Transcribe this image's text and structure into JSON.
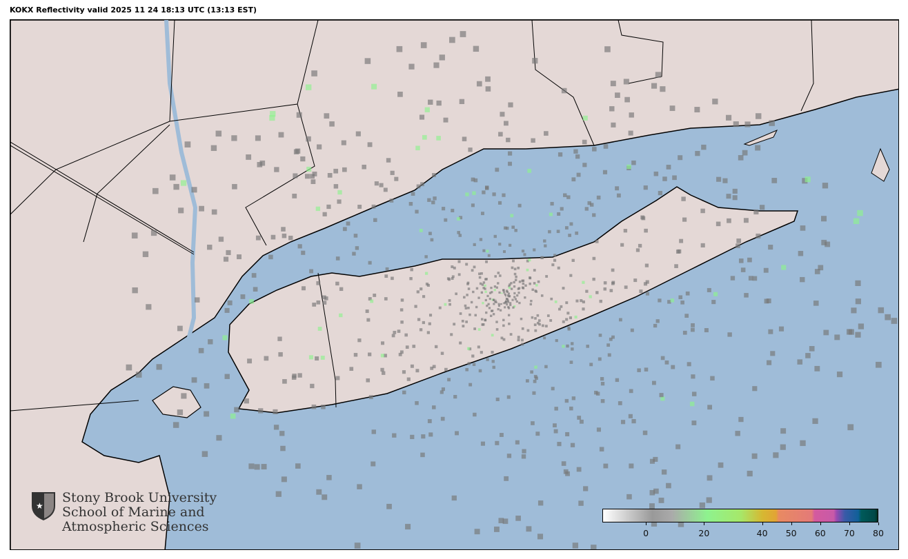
{
  "title": "KOKX Reflectivity valid 2025 11 24 18:13 UTC (13:13 EST)",
  "colors": {
    "ocean": "#9fbcd8",
    "land": "#e4d8d6",
    "border": "#000000"
  },
  "logo": {
    "lines": [
      "Stony Brook University",
      "School of Marine and",
      "Atmospheric Sciences"
    ],
    "icon": "shield-star-icon"
  },
  "colorbar": {
    "min": -15,
    "max": 80,
    "ticks": [
      "0",
      "20",
      "40",
      "50",
      "60",
      "70",
      "80"
    ],
    "tick_values": [
      0,
      20,
      40,
      50,
      60,
      70,
      80
    ]
  }
}
